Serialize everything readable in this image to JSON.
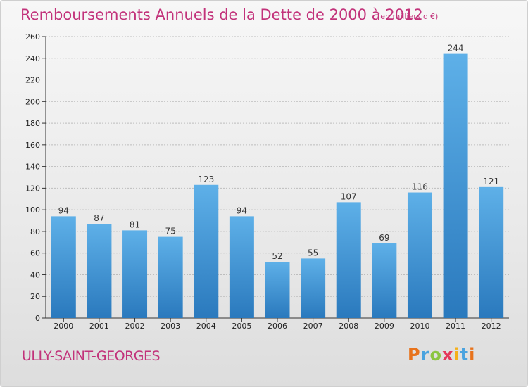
{
  "header": {
    "title": "Remboursements Annuels de la Dette de 2000 à 2012",
    "unit": "(en milliers d'€)"
  },
  "footer": {
    "city": "ULLY-SAINT-GEORGES",
    "logo_letters": [
      "P",
      "r",
      "o",
      "x",
      "i",
      "t",
      "i"
    ],
    "logo_colors": [
      "#e8731c",
      "#4aa3df",
      "#8bc53f",
      "#e5375b",
      "#f5b01a",
      "#4aa3df",
      "#e8731c"
    ]
  },
  "colors": {
    "bar_light": "#5eb0e8",
    "bar_dark": "#2a79bd",
    "accent": "#c2327a"
  },
  "chart_data": {
    "type": "bar",
    "title": "Remboursements Annuels de la Dette de 2000 à 2012",
    "subtitle": "(en milliers d'€)",
    "categories": [
      "2000",
      "2001",
      "2002",
      "2003",
      "2004",
      "2005",
      "2006",
      "2007",
      "2008",
      "2009",
      "2010",
      "2011",
      "2012"
    ],
    "values": [
      94,
      87,
      81,
      75,
      123,
      94,
      52,
      55,
      107,
      69,
      116,
      244,
      121
    ],
    "ylim": [
      0,
      260
    ],
    "yticks": [
      0,
      20,
      40,
      60,
      80,
      100,
      120,
      140,
      160,
      180,
      200,
      220,
      240,
      260
    ],
    "grid": true,
    "xlabel": "",
    "ylabel": ""
  }
}
